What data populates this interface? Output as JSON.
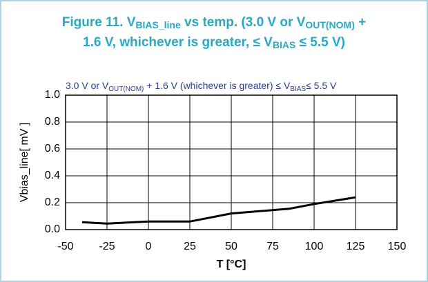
{
  "chart_data": {
    "type": "line",
    "title": [
      [
        {
          "text": "Figure 11. V"
        },
        {
          "text": "BIAS_line",
          "sub": true
        },
        {
          "text": " vs temp. (3.0 V or V"
        },
        {
          "text": "OUT(NOM)",
          "sub": true
        },
        {
          "text": " +"
        }
      ],
      [
        {
          "text": "1.6 V, whichever is greater, ≤ V"
        },
        {
          "text": "BIAS",
          "sub": true
        },
        {
          "text": " ≤ 5.5 V)"
        }
      ]
    ],
    "subtitle": [
      {
        "text": "3.0 V or V"
      },
      {
        "text": "OUT(NOM)",
        "sub": true
      },
      {
        "text": " + 1.6 V (whichever is greater) ≤ V"
      },
      {
        "text": "BIAS",
        "sub": true
      },
      {
        "text": "≤ 5.5 V"
      }
    ],
    "x_label": "T [°C]",
    "y_label": "Vbias_line[ mV ]",
    "x": [
      -40,
      -25,
      0,
      25,
      50,
      85,
      100,
      125
    ],
    "series": [
      {
        "color": "#000000",
        "values": [
          0.055,
          0.045,
          0.06,
          0.06,
          0.12,
          0.155,
          0.19,
          0.24
        ]
      }
    ],
    "xlim": [
      -50,
      150
    ],
    "xticks": [
      -50,
      -25,
      0,
      25,
      50,
      75,
      100,
      125,
      150
    ],
    "ylim": [
      0,
      1
    ],
    "yticks": [
      {
        "value": 0,
        "label": "0.0"
      },
      0.2,
      0.4,
      0.6,
      0.8,
      {
        "value": 1,
        "label": "1.0"
      }
    ],
    "grid": true
  }
}
